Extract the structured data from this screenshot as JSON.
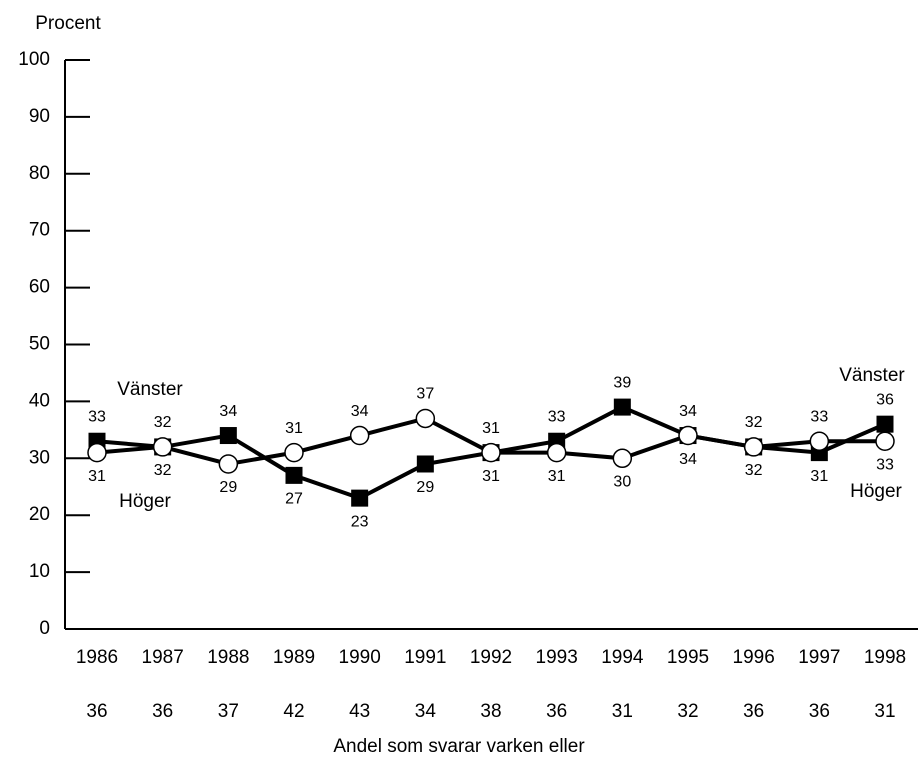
{
  "chart_data": {
    "type": "line",
    "y_label": "Procent",
    "categories": [
      "1986",
      "1987",
      "1988",
      "1989",
      "1990",
      "1991",
      "1992",
      "1993",
      "1994",
      "1995",
      "1996",
      "1997",
      "1998"
    ],
    "series": [
      {
        "name": "Vänster",
        "color": "#000000",
        "marker": "square",
        "values": [
          33,
          32,
          34,
          27,
          23,
          29,
          31,
          33,
          39,
          34,
          32,
          31,
          36
        ]
      },
      {
        "name": "Höger",
        "color": "#ffffff",
        "marker": "circle",
        "values": [
          31,
          32,
          29,
          31,
          34,
          37,
          31,
          31,
          30,
          34,
          32,
          33,
          33
        ]
      }
    ],
    "neither": {
      "label": "Andel som svarar varken eller",
      "values": [
        36,
        36,
        37,
        42,
        43,
        34,
        38,
        36,
        31,
        32,
        36,
        36,
        31
      ]
    },
    "ylim": [
      0,
      100
    ],
    "yticks": [
      0,
      10,
      20,
      30,
      40,
      50,
      60,
      70,
      80,
      90,
      100
    ]
  }
}
